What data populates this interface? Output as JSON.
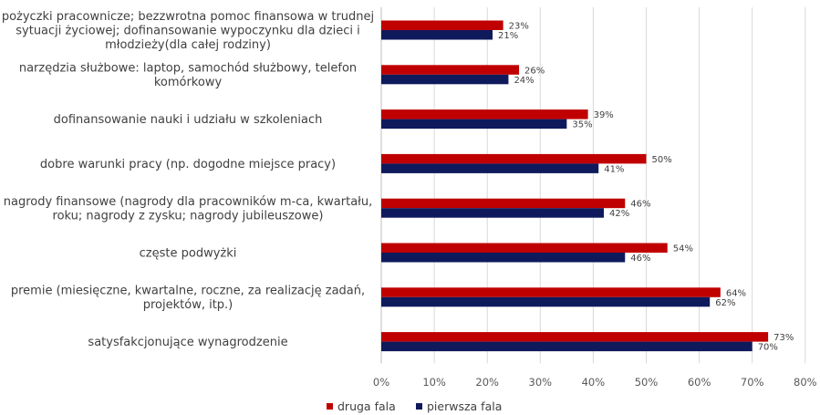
{
  "chart_data": {
    "type": "bar",
    "orientation": "horizontal",
    "categories": [
      [
        "pożyczki pracownicze; bezzwrotna pomoc finansowa w trudnej",
        "sytuacji życiowej; dofinansowanie wypoczynku dla dzieci i",
        "młodzieży(dla całej rodziny)"
      ],
      [
        "narzędzia służbowe: laptop, samochód służbowy, telefon",
        "komórkowy"
      ],
      [
        "dofinansowanie nauki i udziału w szkoleniach"
      ],
      [
        "dobre warunki pracy (np. dogodne miejsce pracy)"
      ],
      [
        "nagrody finansowe (nagrody dla pracowników m-ca, kwartału,",
        "roku; nagrody z zysku; nagrody jubileuszowe)"
      ],
      [
        "częste podwyżki"
      ],
      [
        "premie (miesięczne, kwartalne, roczne, za realizację zadań,",
        "projektów, itp.)"
      ],
      [
        "satysfakcjonujące wynagrodzenie"
      ]
    ],
    "series": [
      {
        "name": "druga fala",
        "color": "#c00000",
        "values": [
          23,
          26,
          39,
          50,
          46,
          54,
          64,
          73
        ],
        "labels": [
          "23%",
          "26%",
          "39%",
          "50%",
          "46%",
          "54%",
          "64%",
          "73%"
        ]
      },
      {
        "name": "pierwsza fala",
        "color": "#0f1a5c",
        "values": [
          21,
          24,
          35,
          41,
          42,
          46,
          62,
          70
        ],
        "labels": [
          "21%",
          "24%",
          "35%",
          "41%",
          "42%",
          "46%",
          "62%",
          "70%"
        ]
      }
    ],
    "xlim": [
      0,
      80
    ],
    "xticks": [
      "0%",
      "10%",
      "20%",
      "30%",
      "40%",
      "50%",
      "60%",
      "70%",
      "80%"
    ],
    "grid": true,
    "legend_position": "bottom"
  }
}
